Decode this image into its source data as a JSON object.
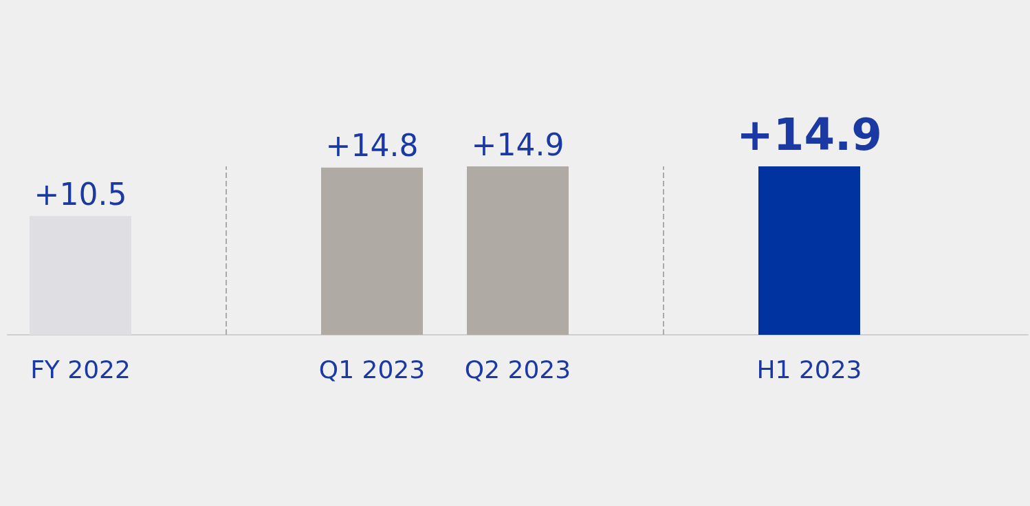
{
  "chart_data": {
    "type": "bar",
    "categories": [
      "FY 2022",
      null,
      "Q1 2023",
      "Q2 2023",
      null,
      "H1 2023",
      null
    ],
    "values": [
      10.5,
      null,
      14.8,
      14.9,
      null,
      14.9,
      null
    ],
    "colors": [
      "#dfdee3",
      null,
      "#b0aaa5",
      "#b0aaa5",
      null,
      "#0033a0",
      null
    ],
    "value_labels": [
      "+10.5",
      null,
      "+14.8",
      "+14.9",
      null,
      "+14.9",
      null
    ],
    "legend": false
  }
}
